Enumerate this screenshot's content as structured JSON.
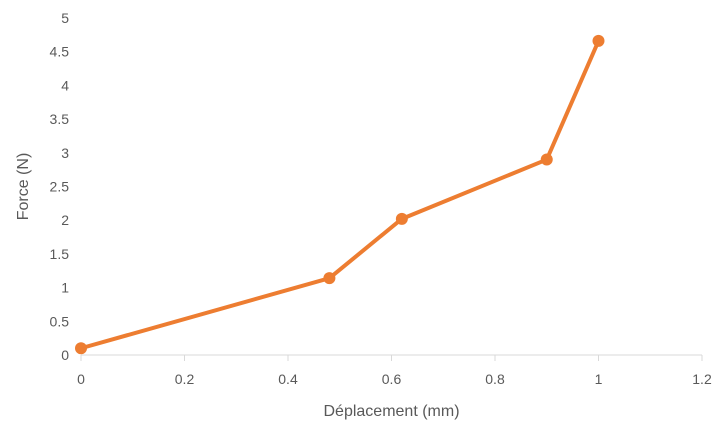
{
  "chart_data": {
    "type": "scatter",
    "title": "",
    "xlabel": "Déplacement (mm)",
    "ylabel": "Force (N)",
    "xlim": [
      0,
      1.2
    ],
    "ylim": [
      0,
      5
    ],
    "xticks": [
      0,
      0.2,
      0.4,
      0.6,
      0.8,
      1,
      1.2
    ],
    "yticks": [
      0,
      0.5,
      1,
      1.5,
      2,
      2.5,
      3,
      3.5,
      4,
      4.5,
      5
    ],
    "grid": false,
    "legend": "none",
    "series": [
      {
        "color": "#ED7D31",
        "markers": true,
        "lines": true,
        "x": [
          0,
          0.48,
          0.62,
          0.9,
          1.0
        ],
        "y": [
          0.1,
          1.14,
          2.02,
          2.9,
          4.66
        ]
      }
    ],
    "colors": {
      "axis": "#D9D9D9",
      "text": "#595959"
    }
  }
}
